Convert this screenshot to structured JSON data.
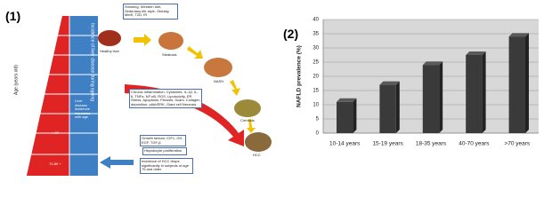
{
  "panel1": {
    "label": "(1)",
    "age_axis": "Age (years old)",
    "incidence_axis": "Incidence of liver disease during ageing",
    "young": "< 20",
    "old": "70-80 +",
    "increase_note": "Liver disease incidence increases with age",
    "risk_box": "Smoking, Western diet, Sedentary life style, Obesity, MetS, T2D, IR",
    "stages": [
      "Healthy liver",
      "Steatosis",
      "NASH",
      "Cirrhosis",
      "HCC"
    ],
    "inflammation_box": "Chronic inflammation, Cytokines: IL-1β, IL-6, TNFα, NF-κB, ROS, Lipotoxicity, ER Stress, Apoptosis, Fibrosis, Scars, Collagen deposition, pAkt/ERK, Giant cell Necrosis",
    "growth_box": "Growth factors: IGF1, GH, EGF, TGF-β",
    "proliferation": "Hepatocyte proliferation",
    "hcc_note": "Incidence of HCC drops significantly in subjects of age 75 and older"
  },
  "chart_data": {
    "type": "bar3d",
    "panel_label": "(2)",
    "y_label": "NAFLD prevalence (%)",
    "categories": [
      "10-14 years",
      "15-19 years",
      "18-35 years",
      "40-70 years",
      ">70 years"
    ],
    "values": [
      11,
      17,
      24,
      27.5,
      34
    ],
    "color": "#3a3a3a",
    "ylim": [
      0,
      40
    ],
    "yticks": [
      0,
      5,
      10,
      15,
      20,
      25,
      30,
      35,
      40
    ],
    "grid": true
  }
}
